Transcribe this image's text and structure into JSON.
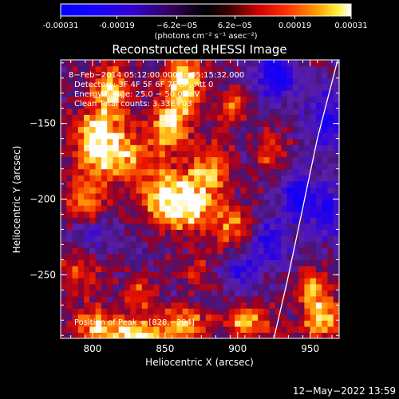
{
  "chart_data": {
    "type": "heatmap",
    "title": "Reconstructed RHESSI Image",
    "xlabel": "Heliocentric X (arcsec)",
    "ylabel": "Heliocentric Y (arcsec)",
    "xlim": [
      778,
      970
    ],
    "ylim": [
      -292,
      -108
    ],
    "x_ticks": [
      800,
      850,
      900,
      950
    ],
    "x_tick_labels": [
      "800",
      "850",
      "900",
      "950"
    ],
    "y_ticks": [
      -150,
      -200,
      -250
    ],
    "y_tick_labels": [
      "−150",
      "−200",
      "−250"
    ],
    "colorbar": {
      "min": -0.00031,
      "max": 0.00031,
      "tick_values": [
        -0.00031,
        -0.00019,
        -6.2e-05,
        6.2e-05,
        0.00019,
        0.00031
      ],
      "tick_labels": [
        "-0.00031",
        "-0.00019",
        "−6.2e−05",
        "6.2e−05",
        "0.00019",
        "0.00031"
      ],
      "units_label": "(photons cm⁻² s⁻¹ asec⁻²)"
    },
    "annotations": [
      "8−Feb−2014 05:12:00.000 to 05:15:32.000",
      "Detectors: 3F 4F 5F 6F 7F 8F, Att 0",
      "Energy Range: 25.0 − 50.0 keV",
      "Clean    Total counts: 3.33E+03"
    ],
    "peak_label": "Position of Peak = [828,−294]",
    "limb_curve": [
      [
        969,
        -108
      ],
      [
        955,
        -160
      ],
      [
        944,
        -210
      ],
      [
        934,
        -255
      ],
      [
        925,
        -292
      ]
    ],
    "hot_regions": [
      {
        "x": 810,
        "y": -130,
        "sx": 10,
        "sy": 14,
        "a": 0.85
      },
      {
        "x": 800,
        "y": -160,
        "sx": 12,
        "sy": 12,
        "a": 0.9
      },
      {
        "x": 795,
        "y": -200,
        "sx": 10,
        "sy": 14,
        "a": 0.7
      },
      {
        "x": 820,
        "y": -175,
        "sx": 14,
        "sy": 12,
        "a": 0.75
      },
      {
        "x": 860,
        "y": -125,
        "sx": 10,
        "sy": 16,
        "a": 0.95
      },
      {
        "x": 850,
        "y": -155,
        "sx": 10,
        "sy": 12,
        "a": 0.8
      },
      {
        "x": 865,
        "y": -205,
        "sx": 14,
        "sy": 14,
        "a": 0.95
      },
      {
        "x": 845,
        "y": -200,
        "sx": 10,
        "sy": 12,
        "a": 0.7
      },
      {
        "x": 880,
        "y": -180,
        "sx": 10,
        "sy": 12,
        "a": 0.65
      },
      {
        "x": 895,
        "y": -220,
        "sx": 10,
        "sy": 10,
        "a": 0.6
      },
      {
        "x": 895,
        "y": -140,
        "sx": 8,
        "sy": 8,
        "a": 0.55
      },
      {
        "x": 920,
        "y": -170,
        "sx": 8,
        "sy": 10,
        "a": 0.5
      },
      {
        "x": 790,
        "y": -250,
        "sx": 10,
        "sy": 10,
        "a": 0.55
      },
      {
        "x": 830,
        "y": -265,
        "sx": 8,
        "sy": 10,
        "a": 0.5
      },
      {
        "x": 870,
        "y": -250,
        "sx": 8,
        "sy": 8,
        "a": 0.45
      },
      {
        "x": 828,
        "y": -292,
        "sx": 14,
        "sy": 7,
        "a": 1.0
      },
      {
        "x": 800,
        "y": -285,
        "sx": 12,
        "sy": 8,
        "a": 0.8
      },
      {
        "x": 860,
        "y": -285,
        "sx": 12,
        "sy": 8,
        "a": 0.85
      },
      {
        "x": 905,
        "y": -282,
        "sx": 12,
        "sy": 8,
        "a": 0.8
      },
      {
        "x": 955,
        "y": -280,
        "sx": 10,
        "sy": 10,
        "a": 0.9
      },
      {
        "x": 950,
        "y": -260,
        "sx": 8,
        "sy": 8,
        "a": 0.6
      }
    ],
    "cold_regions": [
      {
        "x": 925,
        "y": -120,
        "sx": 10,
        "sy": 10,
        "a": 0.6
      },
      {
        "x": 960,
        "y": -150,
        "sx": 10,
        "sy": 14,
        "a": 0.5
      },
      {
        "x": 940,
        "y": -200,
        "sx": 8,
        "sy": 10,
        "a": 0.6
      },
      {
        "x": 920,
        "y": -230,
        "sx": 10,
        "sy": 10,
        "a": 0.5
      },
      {
        "x": 900,
        "y": -250,
        "sx": 8,
        "sy": 8,
        "a": 0.4
      },
      {
        "x": 800,
        "y": -225,
        "sx": 8,
        "sy": 8,
        "a": 0.4
      },
      {
        "x": 960,
        "y": -210,
        "sx": 8,
        "sy": 12,
        "a": 0.5
      }
    ]
  },
  "footer_timestamp": "12−May−2022 13:59"
}
